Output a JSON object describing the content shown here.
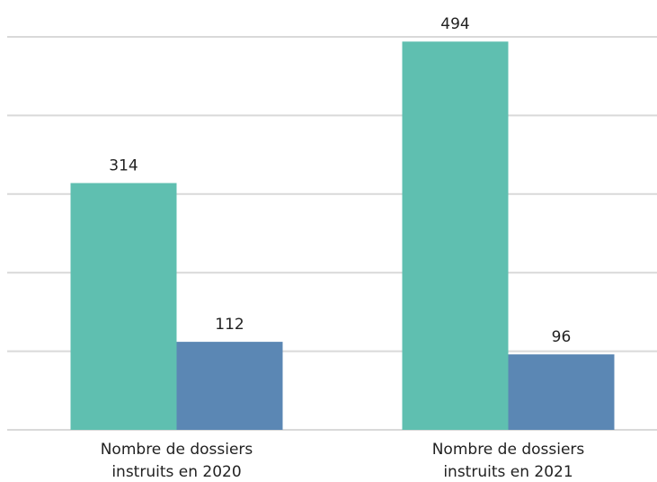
{
  "chart_data": {
    "type": "bar",
    "categories": [
      "Nombre de dossiers instruits en 2020",
      "Nombre de dossiers instruits en 2021"
    ],
    "series": [
      {
        "color": "#5fbfb0",
        "values": [
          314,
          494
        ]
      },
      {
        "color": "#5b87b4",
        "values": [
          112,
          96
        ]
      }
    ],
    "ylim": [
      0,
      500
    ],
    "yticks": [
      0,
      100,
      200,
      300,
      400,
      500
    ],
    "grid": true
  }
}
